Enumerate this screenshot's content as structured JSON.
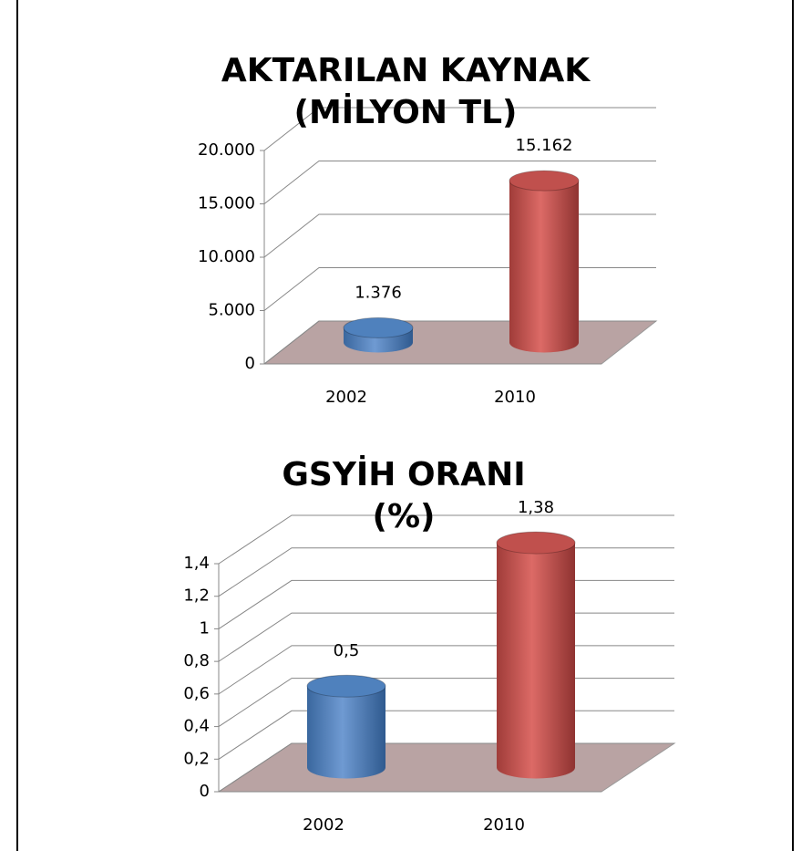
{
  "chart_data": [
    {
      "type": "bar3d",
      "title": "AKTARILAN KAYNAK (MİLYON TL)",
      "categories": [
        "2002",
        "2010"
      ],
      "values": [
        1376,
        15162
      ],
      "value_labels": [
        "1.376",
        "15.162"
      ],
      "colors": [
        "#4f81bd",
        "#c0504d"
      ],
      "ylim": [
        0,
        20000
      ],
      "yticks": [
        0,
        {
          "value": 5000,
          "label": "5.000"
        },
        {
          "value": 10000,
          "label": "10.000"
        },
        {
          "value": 15000,
          "label": "15.000"
        },
        {
          "value": 20000,
          "label": "20.000"
        }
      ],
      "grid": true
    },
    {
      "type": "bar3d",
      "title": "GSYİH ORANI (%)",
      "categories": [
        "2002",
        "2010"
      ],
      "values": [
        0.5,
        1.38
      ],
      "value_labels": [
        "0,5",
        "1,38"
      ],
      "colors": [
        "#4f81bd",
        "#c0504d"
      ],
      "ylim": [
        0,
        1.4
      ],
      "yticks": [
        0,
        {
          "value": 0.2,
          "label": "0,2"
        },
        {
          "value": 0.4,
          "label": "0,4"
        },
        {
          "value": 0.6,
          "label": "0,6"
        },
        {
          "value": 0.8,
          "label": "0,8"
        },
        1,
        {
          "value": 1.2,
          "label": "1,2"
        },
        {
          "value": 1.4,
          "label": "1,4"
        }
      ],
      "grid": true
    }
  ]
}
